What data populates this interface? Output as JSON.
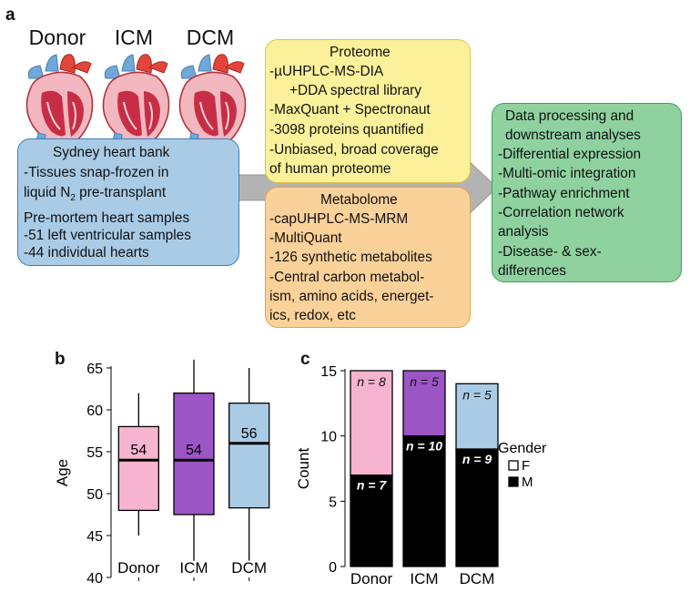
{
  "panels": {
    "a": "a",
    "b": "b",
    "c": "c"
  },
  "hearts": [
    "Donor",
    "ICM",
    "DCM"
  ],
  "bank": {
    "title": "Sydney heart bank",
    "line1": "-Tissues snap-frozen in",
    "line2_pre": "liquid N",
    "line2_sub": "2",
    "line2_post": " pre-transplant",
    "line3": "Pre-mortem heart samples",
    "line4": "-51 left ventricular samples",
    "line5": "-44 individual hearts"
  },
  "proteome": {
    "title": "Proteome",
    "lines": [
      "-µUHPLC-MS-DIA",
      "+DDA spectral library",
      "-MaxQuant + Spectronaut",
      "-3098 proteins quantified",
      "-Unbiased, broad coverage",
      " of human proteome"
    ]
  },
  "metabolome": {
    "title": "Metabolome",
    "lines": [
      "-capUHPLC-MS-MRM",
      "-MultiQuant",
      "-126 synthetic metabolites",
      "-Central carbon metabol-",
      "ism, amino acids, energet-",
      "ics, redox, etc"
    ]
  },
  "processing": {
    "title1": "Data processing and",
    "title2": "downstream analyses",
    "lines": [
      "-Differential expression",
      "-Multi-omic integration",
      "-Pathway enrichment",
      "-Correlation network",
      "analysis",
      "-Disease- & sex-",
      "differences"
    ]
  },
  "colors": {
    "bank": "#a9cbe6",
    "bank_border": "#3f7fba",
    "proteome": "#fbf19b",
    "proteome_border": "#e2c43a",
    "metabolome": "#fbd19a",
    "metabolome_border": "#e6a448",
    "processing": "#8fd2a0",
    "processing_border": "#3aa25a",
    "arrow": "#b3b3b3"
  },
  "chart_data": [
    {
      "type": "box",
      "ylabel": "Age",
      "ylim": [
        40,
        65
      ],
      "yticks": [
        40,
        45,
        50,
        55,
        60,
        65
      ],
      "categories": [
        "Donor",
        "ICM",
        "DCM"
      ],
      "boxes": [
        {
          "category": "Donor",
          "whisker_low": 45,
          "q1": 48,
          "median": 54,
          "q3": 58,
          "whisker_high": 62,
          "label": "54",
          "color": "#f6b4cf"
        },
        {
          "category": "ICM",
          "whisker_low": 42,
          "q1": 47.5,
          "median": 54,
          "q3": 62,
          "whisker_high": 66,
          "label": "54",
          "color": "#9b55c4"
        },
        {
          "category": "DCM",
          "whisker_low": 42,
          "q1": 48.3,
          "median": 56,
          "q3": 60.8,
          "whisker_high": 65,
          "label": "56",
          "color": "#a9cbe6"
        }
      ]
    },
    {
      "type": "bar",
      "stacked": true,
      "ylabel": "Count",
      "ylim": [
        0,
        15
      ],
      "yticks": [
        0,
        5,
        10,
        15
      ],
      "categories": [
        "Donor",
        "ICM",
        "DCM"
      ],
      "series": [
        {
          "name": "M",
          "values": [
            7,
            10,
            9
          ],
          "labels": [
            "n = 7",
            "n = 10",
            "n = 9"
          ]
        },
        {
          "name": "F",
          "values": [
            8,
            5,
            5
          ],
          "labels": [
            "n = 8",
            "n = 5",
            "n = 5"
          ],
          "colors": [
            "#f6b4cf",
            "#9b55c4",
            "#a9cbe6"
          ]
        }
      ],
      "legend": {
        "title": "Gender",
        "entries": [
          "F",
          "M"
        ],
        "position": "right"
      }
    }
  ]
}
